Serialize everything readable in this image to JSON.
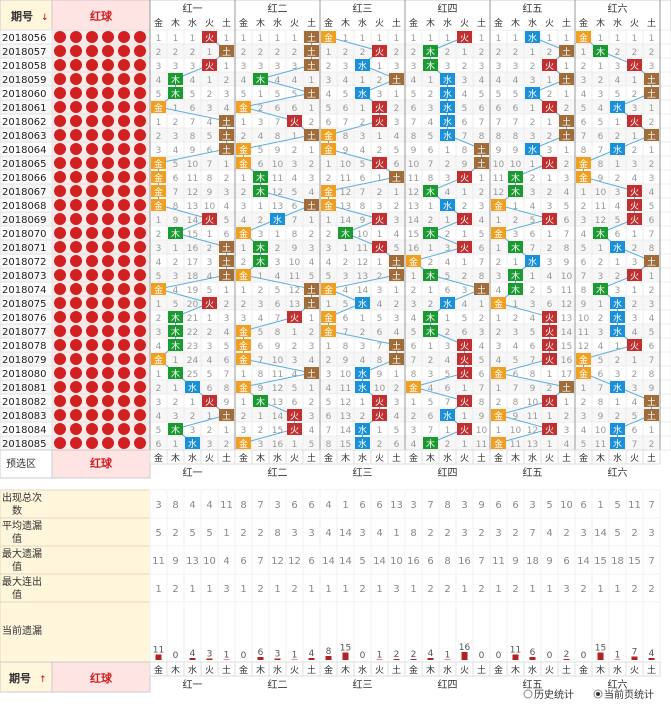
{
  "header": {
    "issue_label": "期号",
    "sort_down": "↓",
    "sort_up": "↑",
    "red_ball_label": "红球"
  },
  "element_labels": [
    "金",
    "木",
    "水",
    "火",
    "土"
  ],
  "group_labels": [
    "红一",
    "红二",
    "红三",
    "红四",
    "红五",
    "红六"
  ],
  "periods": [
    "2018056",
    "2018057",
    "2018058",
    "2018059",
    "2018060",
    "2018061",
    "2018062",
    "2018063",
    "2018064",
    "2018065",
    "2018066",
    "2018067",
    "2018068",
    "2018069",
    "2018070",
    "2018071",
    "2018072",
    "2018073",
    "2018074",
    "2018075",
    "2018076",
    "2018077",
    "2018078",
    "2018079",
    "2018080",
    "2018081",
    "2018082",
    "2018083",
    "2018084",
    "2018085"
  ],
  "hits": [
    [
      3,
      4,
      0,
      3,
      2,
      0
    ],
    [
      4,
      4,
      3,
      1,
      4,
      1
    ],
    [
      3,
      4,
      2,
      1,
      3,
      3
    ],
    [
      1,
      1,
      4,
      2,
      4,
      4
    ],
    [
      1,
      4,
      2,
      2,
      2,
      4
    ],
    [
      0,
      0,
      3,
      2,
      3,
      2
    ],
    [
      4,
      3,
      3,
      2,
      4,
      3
    ],
    [
      4,
      4,
      0,
      2,
      4,
      4
    ],
    [
      4,
      0,
      0,
      4,
      2,
      2
    ],
    [
      0,
      0,
      3,
      4,
      3,
      0
    ],
    [
      0,
      1,
      4,
      3,
      1,
      0
    ],
    [
      0,
      1,
      0,
      1,
      1,
      3
    ],
    [
      0,
      4,
      0,
      2,
      0,
      3
    ],
    [
      3,
      2,
      3,
      3,
      3,
      3
    ],
    [
      1,
      0,
      1,
      1,
      0,
      1
    ],
    [
      4,
      1,
      3,
      3,
      1,
      2
    ],
    [
      4,
      1,
      4,
      0,
      2,
      4
    ],
    [
      4,
      0,
      4,
      1,
      1,
      3
    ],
    [
      0,
      4,
      0,
      4,
      1,
      1
    ],
    [
      3,
      4,
      2,
      2,
      0,
      2
    ],
    [
      1,
      3,
      0,
      1,
      3,
      2
    ],
    [
      1,
      0,
      0,
      1,
      3,
      2
    ],
    [
      1,
      0,
      4,
      3,
      3,
      3
    ],
    [
      0,
      0,
      4,
      3,
      3,
      0
    ],
    [
      1,
      4,
      2,
      3,
      0,
      0
    ],
    [
      2,
      0,
      2,
      0,
      4,
      2
    ],
    [
      3,
      1,
      3,
      3,
      3,
      4
    ],
    [
      4,
      3,
      3,
      2,
      0,
      4
    ],
    [
      1,
      3,
      2,
      3,
      3,
      2
    ],
    [
      2,
      0,
      2,
      1,
      0,
      2
    ]
  ],
  "preselect_label": "预选区",
  "stats": [
    {
      "label": "出现总次数",
      "values": [
        3,
        8,
        4,
        4,
        11,
        8,
        7,
        3,
        6,
        6,
        4,
        1,
        6,
        6,
        13,
        3,
        7,
        8,
        3,
        9,
        6,
        6,
        3,
        5,
        10,
        6,
        1,
        5,
        11,
        7
      ]
    },
    {
      "label": "平均遗漏值",
      "values": [
        5,
        2,
        5,
        5,
        1,
        2,
        2,
        8,
        3,
        3,
        4,
        14,
        3,
        4,
        1,
        8,
        2,
        2,
        3,
        2,
        3,
        2,
        7,
        4,
        2,
        3,
        14,
        5,
        2,
        3
      ]
    },
    {
      "label": "最大遗漏值",
      "values": [
        11,
        9,
        13,
        10,
        4,
        6,
        7,
        12,
        12,
        6,
        14,
        14,
        5,
        14,
        10,
        16,
        6,
        8,
        16,
        7,
        11,
        9,
        18,
        9,
        6,
        14,
        15,
        18,
        15,
        7
      ]
    },
    {
      "label": "最大连出值",
      "values": [
        1,
        2,
        1,
        1,
        3,
        1,
        2,
        1,
        2,
        1,
        1,
        1,
        2,
        1,
        3,
        1,
        2,
        2,
        1,
        2,
        1,
        2,
        1,
        1,
        3,
        2,
        1,
        1,
        2,
        2
      ]
    },
    {
      "label": "当前遗漏",
      "values": [
        11,
        0,
        4,
        3,
        1,
        0,
        6,
        3,
        1,
        4,
        8,
        15,
        0,
        1,
        2,
        2,
        4,
        1,
        16,
        0,
        0,
        11,
        6,
        0,
        2,
        0,
        15,
        1,
        7,
        4
      ]
    }
  ],
  "legend": {
    "history": "历史统计",
    "current_page": "当前页统计"
  },
  "colors": {
    "metal": "#f0a020",
    "wood": "#1a9a30",
    "water": "#1a90d8",
    "fire": "#c03030",
    "earth": "#a06c3a",
    "miss_bar": "#b22222",
    "header_bg": "#ffe4e4",
    "label_bg": "#fff6dc",
    "line": "#5aaede",
    "red_text": "#d02020"
  },
  "chart_data": {
    "type": "table",
    "series_categories": [
      "金",
      "木",
      "水",
      "火",
      "土"
    ],
    "x": [
      "2018056",
      "2018057",
      "2018058",
      "2018059",
      "2018060",
      "2018061",
      "2018062",
      "2018063",
      "2018064",
      "2018065",
      "2018066",
      "2018067",
      "2018068",
      "2018069",
      "2018070",
      "2018071",
      "2018072",
      "2018073",
      "2018074",
      "2018075",
      "2018076",
      "2018077",
      "2018078",
      "2018079",
      "2018080",
      "2018081",
      "2018082",
      "2018083",
      "2018084",
      "2018085"
    ]
  }
}
